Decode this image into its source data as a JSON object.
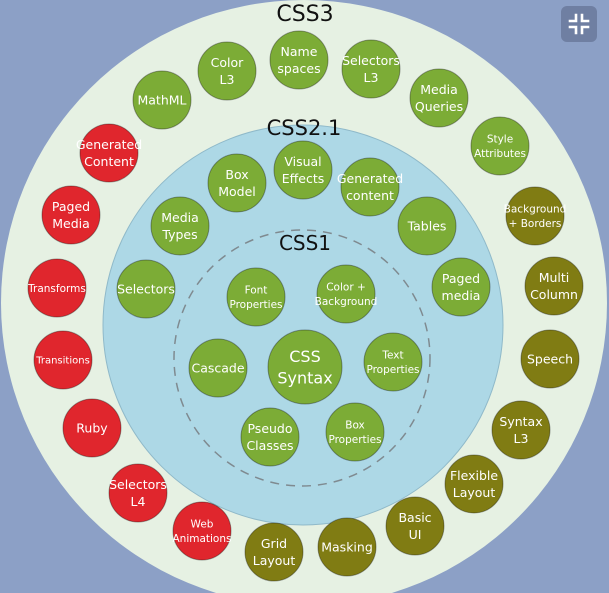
{
  "window": {
    "fullscreen_exit_icon": "exit-fullscreen-icon"
  },
  "colors": {
    "background": "#8ca0c6",
    "outer_ring": "#e6f1e3",
    "middle_disc": "#add8e6",
    "green": "#7cac36",
    "red": "#e0262d",
    "olive": "#807c13",
    "dashed_circle": "#7f8a90"
  },
  "diagram": {
    "rings": [
      {
        "id": "css3",
        "label": "CSS3"
      },
      {
        "id": "css21",
        "label": "CSS2.1"
      },
      {
        "id": "css1",
        "label": "CSS1"
      }
    ],
    "center": {
      "lines": [
        "CSS",
        "Syntax"
      ],
      "color": "green"
    },
    "css1_items": [
      {
        "lines": [
          "Font",
          "Properties"
        ],
        "color": "green"
      },
      {
        "lines": [
          "Color +",
          "Background"
        ],
        "color": "green"
      },
      {
        "lines": [
          "Text",
          "Properties"
        ],
        "color": "green"
      },
      {
        "lines": [
          "Box",
          "Properties"
        ],
        "color": "green"
      },
      {
        "lines": [
          "Pseudo",
          "Classes"
        ],
        "color": "green"
      },
      {
        "lines": [
          "Cascade"
        ],
        "color": "green"
      }
    ],
    "css21_items": [
      {
        "lines": [
          "Visual",
          "Effects"
        ],
        "color": "green"
      },
      {
        "lines": [
          "Generated",
          "content"
        ],
        "color": "green"
      },
      {
        "lines": [
          "Tables"
        ],
        "color": "green"
      },
      {
        "lines": [
          "Paged",
          "media"
        ],
        "color": "green"
      },
      {
        "lines": [
          "Selectors"
        ],
        "color": "green"
      },
      {
        "lines": [
          "Media",
          "Types"
        ],
        "color": "green"
      },
      {
        "lines": [
          "Box",
          "Model"
        ],
        "color": "green"
      }
    ],
    "css3_items": [
      {
        "lines": [
          "Name",
          "spaces"
        ],
        "color": "green"
      },
      {
        "lines": [
          "Selectors",
          "L3"
        ],
        "color": "green"
      },
      {
        "lines": [
          "Media",
          "Queries"
        ],
        "color": "green"
      },
      {
        "lines": [
          "Style",
          "Attributes"
        ],
        "color": "green"
      },
      {
        "lines": [
          "Background",
          "+ Borders"
        ],
        "color": "olive"
      },
      {
        "lines": [
          "Multi",
          "Column"
        ],
        "color": "olive"
      },
      {
        "lines": [
          "Speech"
        ],
        "color": "olive"
      },
      {
        "lines": [
          "Syntax",
          "L3"
        ],
        "color": "olive"
      },
      {
        "lines": [
          "Flexible",
          "Layout"
        ],
        "color": "olive"
      },
      {
        "lines": [
          "Basic",
          "UI"
        ],
        "color": "olive"
      },
      {
        "lines": [
          "Masking"
        ],
        "color": "olive"
      },
      {
        "lines": [
          "Grid",
          "Layout"
        ],
        "color": "olive"
      },
      {
        "lines": [
          "Web",
          "Animations"
        ],
        "color": "red"
      },
      {
        "lines": [
          "Selectors",
          "L4"
        ],
        "color": "red"
      },
      {
        "lines": [
          "Ruby"
        ],
        "color": "red"
      },
      {
        "lines": [
          "Transitions"
        ],
        "color": "red"
      },
      {
        "lines": [
          "Transforms"
        ],
        "color": "red"
      },
      {
        "lines": [
          "Paged",
          "Media"
        ],
        "color": "red"
      },
      {
        "lines": [
          "Generated",
          "Content"
        ],
        "color": "red"
      },
      {
        "lines": [
          "MathML"
        ],
        "color": "green"
      },
      {
        "lines": [
          "Color",
          "L3"
        ],
        "color": "green"
      }
    ]
  }
}
